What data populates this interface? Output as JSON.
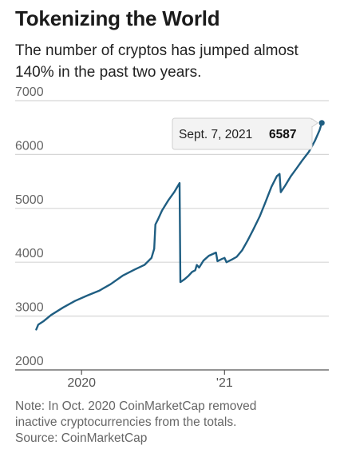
{
  "title": "Tokenizing the World",
  "subtitle": "The number of cryptos has jumped almost 140% in the past two years.",
  "note_line1": "Note: In Oct. 2020 CoinMarketCap removed",
  "note_line2": "inactive cryptocurrencies from the totals.",
  "source": "Source: CoinMarketCap",
  "colors": {
    "line": "#1f5e82",
    "grid": "#d6d6d6",
    "axis": "#555555",
    "callout_bg": "#f3f3f3",
    "callout_border": "#cfcfcf"
  },
  "chart_data": {
    "type": "line",
    "title": "",
    "xlabel": "",
    "ylabel": "",
    "x_tick_labels": [
      {
        "label": "2020",
        "x": "2020-01-01"
      },
      {
        "label": "'21",
        "x": "2021-01-01"
      }
    ],
    "y_ticks": [
      2000,
      3000,
      4000,
      5000,
      6000,
      7000
    ],
    "ylim": [
      2000,
      7000
    ],
    "xlim": [
      "2019-07-15",
      "2021-09-25"
    ],
    "grid": true,
    "annotation": {
      "date_label": "Sept. 7, 2021",
      "value_label": "6587",
      "x": "2021-09-07",
      "y": 6587
    },
    "series": [
      {
        "points": [
          [
            "2019-09-07",
            2750
          ],
          [
            "2019-09-12",
            2840
          ],
          [
            "2019-09-25",
            2900
          ],
          [
            "2019-10-15",
            3020
          ],
          [
            "2019-11-15",
            3160
          ],
          [
            "2019-12-15",
            3280
          ],
          [
            "2020-01-15",
            3380
          ],
          [
            "2020-02-15",
            3470
          ],
          [
            "2020-03-15",
            3590
          ],
          [
            "2020-04-15",
            3750
          ],
          [
            "2020-05-15",
            3860
          ],
          [
            "2020-06-10",
            3950
          ],
          [
            "2020-06-28",
            4080
          ],
          [
            "2020-07-05",
            4250
          ],
          [
            "2020-07-08",
            4700
          ],
          [
            "2020-07-15",
            4800
          ],
          [
            "2020-07-25",
            4960
          ],
          [
            "2020-08-10",
            5150
          ],
          [
            "2020-08-25",
            5300
          ],
          [
            "2020-09-08",
            5470
          ],
          [
            "2020-09-10",
            3630
          ],
          [
            "2020-09-20",
            3680
          ],
          [
            "2020-10-01",
            3750
          ],
          [
            "2020-10-10",
            3820
          ],
          [
            "2020-10-18",
            3850
          ],
          [
            "2020-10-22",
            3950
          ],
          [
            "2020-10-28",
            3900
          ],
          [
            "2020-11-08",
            4030
          ],
          [
            "2020-11-22",
            4120
          ],
          [
            "2020-12-01",
            4150
          ],
          [
            "2020-12-10",
            4180
          ],
          [
            "2020-12-14",
            4020
          ],
          [
            "2020-12-25",
            4060
          ],
          [
            "2021-01-01",
            4080
          ],
          [
            "2021-01-06",
            4000
          ],
          [
            "2021-01-20",
            4050
          ],
          [
            "2021-02-01",
            4100
          ],
          [
            "2021-02-15",
            4220
          ],
          [
            "2021-03-01",
            4400
          ],
          [
            "2021-03-15",
            4600
          ],
          [
            "2021-04-01",
            4850
          ],
          [
            "2021-04-15",
            5100
          ],
          [
            "2021-05-01",
            5400
          ],
          [
            "2021-05-15",
            5600
          ],
          [
            "2021-05-22",
            5640
          ],
          [
            "2021-05-25",
            5300
          ],
          [
            "2021-06-05",
            5420
          ],
          [
            "2021-06-20",
            5600
          ],
          [
            "2021-07-05",
            5750
          ],
          [
            "2021-07-20",
            5900
          ],
          [
            "2021-08-05",
            6050
          ],
          [
            "2021-08-20",
            6250
          ],
          [
            "2021-09-01",
            6450
          ],
          [
            "2021-09-07",
            6587
          ]
        ]
      }
    ]
  }
}
